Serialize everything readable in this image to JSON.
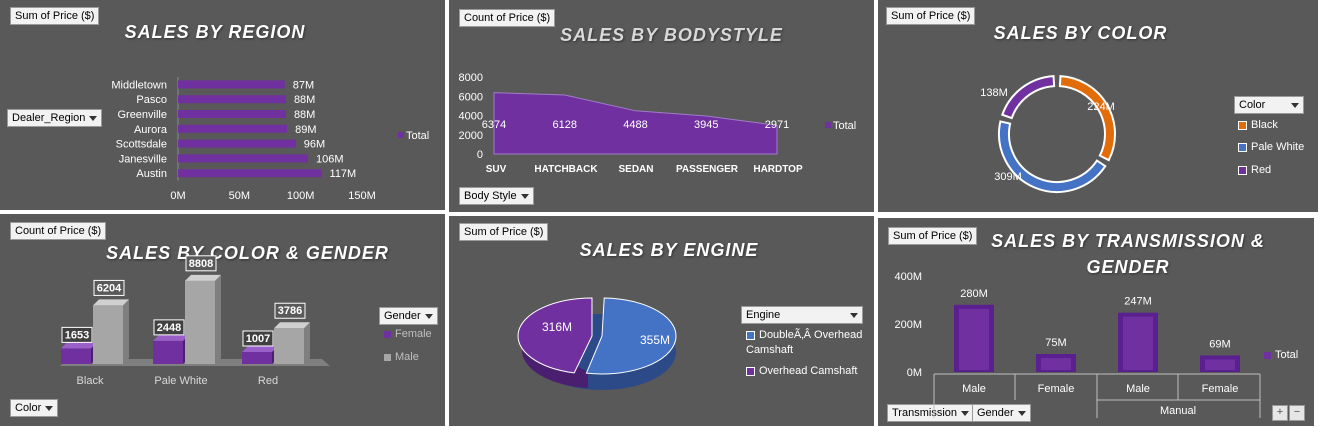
{
  "panels": {
    "region": {
      "button": "Sum of Price ($)",
      "title": "SALES BY REGION",
      "filter": "Dealer_Region",
      "legend": "Total"
    },
    "bodystyle": {
      "button": "Count of Price ($)",
      "title": "SALES BY BODYSTYLE",
      "filter": "Body Style",
      "legend": "Total"
    },
    "color": {
      "button": "Sum of Price ($)",
      "title": "SALES BY COLOR",
      "filter": "Color",
      "legend_items": [
        "Black",
        "Pale White",
        "Red"
      ]
    },
    "colorgender": {
      "button": "Count of Price ($)",
      "title": "SALES BY COLOR & GENDER",
      "filter": "Color",
      "legend_filter": "Gender",
      "legend_items": [
        "Female",
        "Male"
      ]
    },
    "engine": {
      "button": "Sum of Price ($)",
      "title": "SALES BY ENGINE",
      "filter": "Engine",
      "legend_items": [
        "DoubleÃ‚Â Overhead Camshaft",
        "Overhead Camshaft"
      ]
    },
    "transmission": {
      "button": "Sum of Price ($)",
      "title_line1": "SALES BY TRANSMISSION &",
      "title_line2": "GENDER",
      "filter1": "Transmission",
      "filter2": "Gender",
      "legend": "Total",
      "group_label": "Manual",
      "plus": "+",
      "minus": "−"
    }
  },
  "chart_data": [
    {
      "id": "region",
      "type": "bar",
      "orientation": "horizontal",
      "categories": [
        "Middletown",
        "Pasco",
        "Greenville",
        "Aurora",
        "Scottsdale",
        "Janesville",
        "Austin"
      ],
      "values": [
        87,
        88,
        88,
        89,
        96,
        106,
        117
      ],
      "data_labels": [
        "87M",
        "88M",
        "88M",
        "89M",
        "96M",
        "106M",
        "117M"
      ],
      "xticks": [
        "0M",
        "50M",
        "100M",
        "150M"
      ],
      "xlim": [
        0,
        150
      ],
      "series_name": "Total",
      "color": "#7030a0"
    },
    {
      "id": "bodystyle",
      "type": "area",
      "categories": [
        "SUV",
        "HATCHBACK",
        "SEDAN",
        "PASSENGER",
        "HARDTOP"
      ],
      "values": [
        6374,
        6128,
        4488,
        3945,
        2971
      ],
      "data_labels": [
        "6374",
        "6128",
        "4488",
        "3945",
        "2971"
      ],
      "yticks": [
        "0",
        "2000",
        "4000",
        "6000",
        "8000"
      ],
      "ylim": [
        0,
        8000
      ],
      "series_name": "Total",
      "color": "#7030a0"
    },
    {
      "id": "color",
      "type": "pie",
      "style": "doughnut",
      "categories": [
        "Black",
        "Pale White",
        "Red"
      ],
      "values": [
        224,
        309,
        138
      ],
      "data_labels": [
        "224M",
        "309M",
        "138M"
      ],
      "colors": [
        "#e36c0a",
        "#4472c4",
        "#7030a0"
      ]
    },
    {
      "id": "colorgender",
      "type": "bar",
      "style": "3d-column",
      "categories": [
        "Black",
        "Pale White",
        "Red"
      ],
      "series": [
        {
          "name": "Female",
          "values": [
            1653,
            2448,
            1007
          ],
          "data_labels": [
            "1653",
            "2448",
            "1007"
          ],
          "color": "#7030a0"
        },
        {
          "name": "Male",
          "values": [
            6204,
            8808,
            3786
          ],
          "data_labels": [
            "6204",
            "8808",
            "3786"
          ],
          "color": "#a6a6a6"
        }
      ],
      "ylim": [
        0,
        9000
      ]
    },
    {
      "id": "engine",
      "type": "pie",
      "style": "3d",
      "categories": [
        "DoubleÃ‚Â Overhead Camshaft",
        "Overhead Camshaft"
      ],
      "values": [
        355,
        316
      ],
      "data_labels": [
        "355M",
        "316M"
      ],
      "colors": [
        "#4472c4",
        "#7030a0"
      ]
    },
    {
      "id": "transmission",
      "type": "bar",
      "categories": [
        "Male",
        "Female",
        "Male",
        "Female"
      ],
      "values": [
        280,
        75,
        247,
        69
      ],
      "data_labels": [
        "280M",
        "75M",
        "247M",
        "69M"
      ],
      "yticks": [
        "0M",
        "200M",
        "400M"
      ],
      "ylim": [
        0,
        400
      ],
      "series_name": "Total",
      "color": "#7030a0"
    }
  ]
}
